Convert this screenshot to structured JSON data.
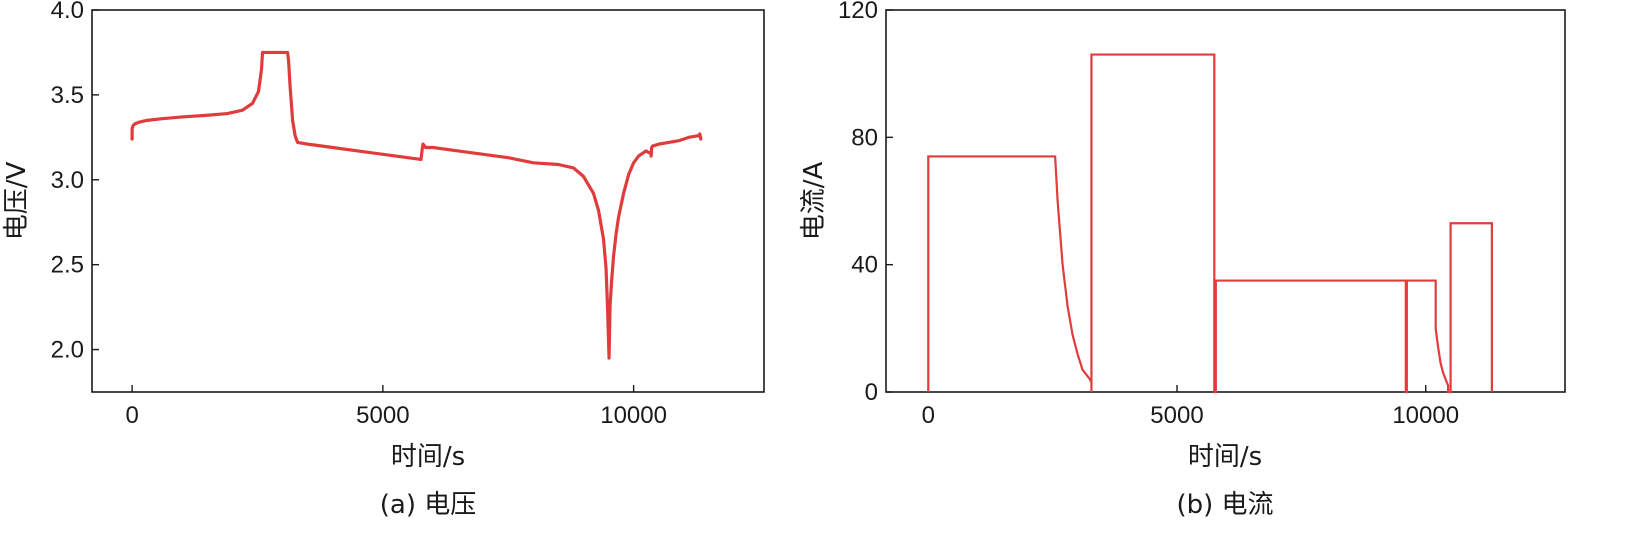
{
  "chart_data": [
    {
      "type": "line",
      "caption": "(a) 电压",
      "xlabel": "时间/s",
      "ylabel": "电压/V",
      "xlim": [
        -800,
        12600
      ],
      "ylim": [
        1.75,
        4.0
      ],
      "xticks": [
        0,
        5000,
        10000
      ],
      "xtick_labels": [
        "0",
        "5000",
        "10000"
      ],
      "yticks": [
        2.0,
        2.5,
        3.0,
        3.5,
        4.0
      ],
      "ytick_labels": [
        "2.0",
        "2.5",
        "3.0",
        "3.5",
        "4.0"
      ],
      "grid": false,
      "color": "#e03c3c",
      "series": [
        {
          "x": [
            0,
            0,
            20,
            60,
            150,
            300,
            600,
            1000,
            1500,
            1900,
            2200,
            2400,
            2520,
            2580,
            2600,
            3100,
            3120,
            3150,
            3200,
            3250,
            3300,
            3500,
            4000,
            4500,
            5000,
            5500,
            5760,
            5780,
            5800,
            5830,
            5850,
            6000,
            6500,
            7000,
            7500,
            8000,
            8500,
            8800,
            9000,
            9200,
            9300,
            9400,
            9450,
            9480,
            9500,
            9510,
            9520,
            9530,
            9560,
            9600,
            9650,
            9700,
            9800,
            9900,
            10000,
            10100,
            10200,
            10250,
            10300,
            10340,
            10350,
            10360,
            10380,
            10400,
            10500,
            10700,
            10900,
            11100,
            11300,
            11320,
            11340
          ],
          "y": [
            3.24,
            3.3,
            3.32,
            3.33,
            3.34,
            3.35,
            3.36,
            3.37,
            3.38,
            3.39,
            3.41,
            3.45,
            3.52,
            3.65,
            3.75,
            3.75,
            3.7,
            3.55,
            3.35,
            3.26,
            3.22,
            3.21,
            3.19,
            3.17,
            3.15,
            3.13,
            3.12,
            3.17,
            3.21,
            3.2,
            3.19,
            3.19,
            3.17,
            3.15,
            3.13,
            3.1,
            3.09,
            3.07,
            3.02,
            2.92,
            2.82,
            2.65,
            2.48,
            2.25,
            2.05,
            1.95,
            2.1,
            2.25,
            2.4,
            2.55,
            2.68,
            2.78,
            2.92,
            3.03,
            3.1,
            3.14,
            3.16,
            3.17,
            3.16,
            3.16,
            3.14,
            3.19,
            3.2,
            3.2,
            3.21,
            3.22,
            3.23,
            3.25,
            3.26,
            3.27,
            3.24
          ]
        }
      ]
    },
    {
      "type": "line",
      "caption": "(b) 电流",
      "xlabel": "时间/s",
      "ylabel": "电流/A",
      "xlim": [
        -850,
        12800
      ],
      "ylim": [
        0,
        120
      ],
      "xticks": [
        0,
        5000,
        10000
      ],
      "xtick_labels": [
        "0",
        "5000",
        "10000"
      ],
      "yticks": [
        0,
        40,
        80,
        120
      ],
      "ytick_labels": [
        "0",
        "40",
        "80",
        "120"
      ],
      "grid": false,
      "color": "#e03c3c",
      "series": [
        {
          "x": [
            0,
            0,
            2550,
            2600,
            2700,
            2800,
            2900,
            3000,
            3100,
            3200,
            3250,
            3280,
            3280,
            3280,
            5750,
            5750,
            5780,
            5780,
            9600,
            9600,
            9620,
            9620,
            10200,
            10200,
            10250,
            10300,
            10350,
            10400,
            10450,
            10450,
            10500,
            10500,
            11330,
            11330
          ],
          "y": [
            0,
            74,
            74,
            60,
            40,
            27,
            18,
            12,
            7,
            5,
            4,
            3,
            0,
            106,
            106,
            0,
            0,
            35,
            35,
            0,
            0,
            35,
            35,
            20,
            14,
            9,
            6,
            4,
            2,
            0,
            0,
            53,
            53,
            0
          ]
        }
      ]
    }
  ]
}
